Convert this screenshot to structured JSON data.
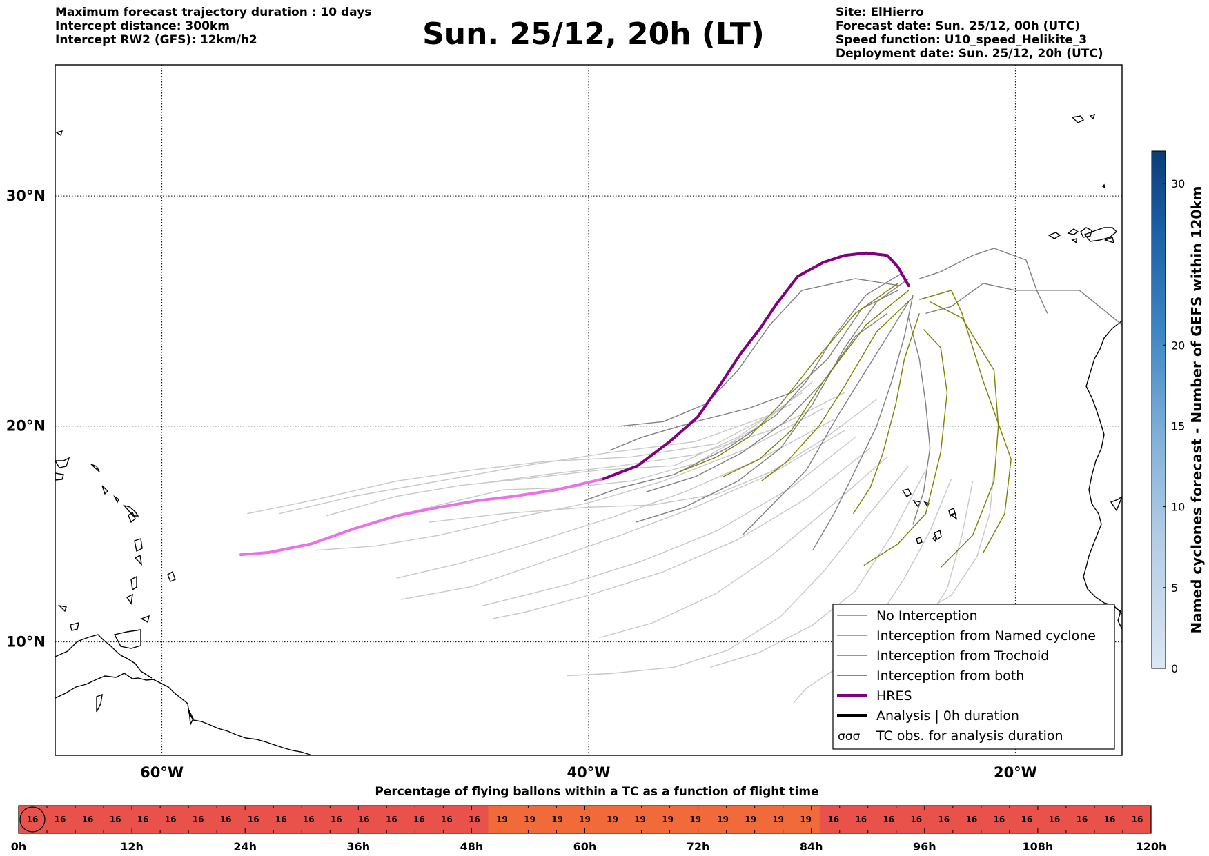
{
  "header_left": [
    "Maximum forecast trajectory duration : 10 days",
    "Intercept distance: 300km",
    "Intercept RW2 (GFS):  12km/h2"
  ],
  "title": "Sun. 25/12, 20h (LT)",
  "header_right": [
    "Site: ElHierro",
    "Forecast date: Sun. 25/12, 00h (UTC)",
    "Speed function: U10_speed_Helikite_3",
    "Deployment date: Sun. 25/12, 20h (UTC)"
  ],
  "map": {
    "lat_labels": [
      {
        "text": "30°N",
        "lat": 30
      },
      {
        "text": "20°N",
        "lat": 20
      },
      {
        "text": "10°N",
        "lat": 10
      }
    ],
    "lon_labels": [
      {
        "text": "60°W",
        "lon": -60
      },
      {
        "text": "40°W",
        "lon": -40
      },
      {
        "text": "20°W",
        "lon": -20
      }
    ],
    "lon_range": [
      -65,
      -15
    ],
    "lat_range": [
      4.6,
      35.3
    ],
    "grid": true
  },
  "legend": [
    {
      "label": "No Interception",
      "color": "#808080",
      "kind": "thin"
    },
    {
      "label": "Interception from Named cyclone",
      "color": "#ff5a1f",
      "kind": "thin"
    },
    {
      "label": "Interception from Trochoid",
      "color": "#808000",
      "kind": "thin"
    },
    {
      "label": "Interception from both",
      "color": "#228b22",
      "kind": "thin"
    },
    {
      "label": "HRES",
      "color": "#800080",
      "kind": "thick"
    },
    {
      "label": "Analysis | 0h duration",
      "color": "#000000",
      "kind": "thick"
    },
    {
      "label": "TC obs. for analysis duration",
      "color": "#000000",
      "kind": "symbol"
    }
  ],
  "colorbar": {
    "label": "Named cyclones forecast - Number of GEFS within 120km",
    "ticks": [
      "0",
      "5",
      "10",
      "15",
      "20",
      "30"
    ],
    "tick_values": [
      0,
      5,
      10,
      15,
      20,
      30
    ],
    "range": [
      0,
      32
    ],
    "color_low": "#dbe7f4",
    "color_high": "#0b3c78"
  },
  "bar": {
    "title": "Percentage of flying ballons within a TC as a function of flight time",
    "cells": [
      16,
      16,
      16,
      16,
      16,
      16,
      16,
      16,
      16,
      16,
      16,
      16,
      16,
      16,
      16,
      16,
      16,
      19,
      19,
      19,
      19,
      19,
      19,
      19,
      19,
      19,
      19,
      19,
      19,
      16,
      16,
      16,
      16,
      16,
      16,
      16,
      16,
      16,
      16,
      16,
      16
    ],
    "color_16": "#e8524a",
    "color_19": "#f06a3a",
    "time_labels": [
      "0h",
      "12h",
      "24h",
      "36h",
      "48h",
      "60h",
      "72h",
      "84h",
      "96h",
      "108h",
      "120h"
    ],
    "time_values": [
      0,
      12,
      24,
      36,
      48,
      60,
      72,
      84,
      96,
      108,
      120
    ],
    "highlight_cell": 0
  },
  "trajectories": {
    "hres": [
      [
        -25.0,
        26.2
      ],
      [
        -25.5,
        27.0
      ],
      [
        -26.0,
        27.5
      ],
      [
        -27.0,
        27.6
      ],
      [
        -28.0,
        27.5
      ],
      [
        -29.0,
        27.2
      ],
      [
        -30.2,
        26.6
      ],
      [
        -31.2,
        25.4
      ],
      [
        -32.0,
        24.3
      ],
      [
        -32.9,
        23.2
      ],
      [
        -33.8,
        21.9
      ],
      [
        -34.9,
        20.4
      ],
      [
        -36.2,
        19.3
      ],
      [
        -37.7,
        18.2
      ],
      [
        -39.3,
        17.6
      ]
    ],
    "hres_late": [
      [
        -39.3,
        17.6
      ],
      [
        -41.5,
        17.1
      ],
      [
        -43.5,
        16.8
      ],
      [
        -45.2,
        16.6
      ],
      [
        -47.0,
        16.3
      ],
      [
        -49.0,
        15.9
      ],
      [
        -51.0,
        15.3
      ],
      [
        -53.0,
        14.6
      ],
      [
        -55.0,
        14.2
      ],
      [
        -56.3,
        14.1
      ]
    ],
    "no_interception": [
      [
        [
          -25.0,
          26.5
        ],
        [
          -26.5,
          25.5
        ],
        [
          -28.0,
          23.5
        ],
        [
          -29.5,
          21.0
        ],
        [
          -31.0,
          19.0
        ],
        [
          -33.0,
          17.5
        ],
        [
          -35.5,
          16.3
        ],
        [
          -37.8,
          15.6
        ]
      ],
      [
        [
          -25.2,
          26.8
        ],
        [
          -27.0,
          25.8
        ],
        [
          -28.5,
          24.0
        ],
        [
          -29.8,
          22.0
        ],
        [
          -31.2,
          20.5
        ],
        [
          -33.5,
          19.0
        ],
        [
          -36.0,
          17.8
        ],
        [
          -38.5,
          17.2
        ],
        [
          -40.2,
          16.6
        ]
      ],
      [
        [
          -25.5,
          26.0
        ],
        [
          -27.2,
          25.2
        ],
        [
          -28.8,
          23.0
        ],
        [
          -30.5,
          21.5
        ],
        [
          -32.5,
          20.8
        ],
        [
          -35.0,
          20.2
        ],
        [
          -37.5,
          19.5
        ],
        [
          -39.0,
          18.9
        ]
      ],
      [
        [
          -25.0,
          25.5
        ],
        [
          -26.0,
          24.0
        ],
        [
          -27.0,
          22.5
        ],
        [
          -28.3,
          20.5
        ],
        [
          -29.8,
          18.0
        ],
        [
          -31.5,
          16.3
        ],
        [
          -32.8,
          15.0
        ]
      ],
      [
        [
          -25.4,
          26.2
        ],
        [
          -27.5,
          26.5
        ],
        [
          -30.0,
          26.0
        ],
        [
          -31.5,
          24.5
        ],
        [
          -33.0,
          22.5
        ],
        [
          -34.5,
          21.0
        ],
        [
          -36.5,
          20.2
        ],
        [
          -38.5,
          20.0
        ]
      ],
      [
        [
          -24.8,
          25.8
        ],
        [
          -25.2,
          24.0
        ],
        [
          -25.8,
          22.0
        ],
        [
          -26.5,
          20.0
        ],
        [
          -27.5,
          18.0
        ],
        [
          -28.5,
          16.0
        ],
        [
          -29.5,
          14.3
        ]
      ],
      [
        [
          -25.0,
          24.8
        ],
        [
          -24.5,
          23.0
        ],
        [
          -24.2,
          21.0
        ],
        [
          -24.0,
          19.0
        ],
        [
          -24.3,
          17.0
        ],
        [
          -24.8,
          15.5
        ]
      ],
      [
        [
          -24.5,
          26.5
        ],
        [
          -23.5,
          26.8
        ],
        [
          -22.0,
          27.5
        ],
        [
          -21.0,
          27.8
        ],
        [
          -19.5,
          27.3
        ],
        [
          -19.0,
          26.0
        ],
        [
          -18.5,
          25.0
        ]
      ],
      [
        [
          -26.0,
          25.0
        ],
        [
          -27.5,
          24.0
        ],
        [
          -29.0,
          22.0
        ],
        [
          -30.8,
          20.2
        ],
        [
          -32.8,
          18.8
        ],
        [
          -35.0,
          17.7
        ],
        [
          -37.3,
          17.0
        ]
      ],
      [
        [
          -24.2,
          25.0
        ],
        [
          -23.0,
          25.3
        ],
        [
          -21.5,
          26.3
        ],
        [
          -20.0,
          26.0
        ],
        [
          -17.0,
          26.0
        ],
        [
          -15.0,
          24.5
        ]
      ]
    ],
    "trochoid": [
      [
        [
          -25.5,
          26.3
        ],
        [
          -27.5,
          25.0
        ],
        [
          -29.5,
          22.8
        ],
        [
          -31.0,
          21.0
        ],
        [
          -32.5,
          19.5
        ],
        [
          -34.0,
          18.6
        ],
        [
          -35.8,
          17.9
        ]
      ],
      [
        [
          -25.0,
          26.0
        ],
        [
          -27.0,
          24.5
        ],
        [
          -29.0,
          22.0
        ],
        [
          -30.5,
          19.8
        ],
        [
          -32.0,
          18.5
        ],
        [
          -33.7,
          17.7
        ]
      ],
      [
        [
          -24.8,
          25.7
        ],
        [
          -26.5,
          24.2
        ],
        [
          -28.0,
          21.8
        ],
        [
          -29.2,
          20.0
        ],
        [
          -30.7,
          18.4
        ],
        [
          -31.9,
          17.5
        ]
      ],
      [
        [
          -24.5,
          25.0
        ],
        [
          -25.2,
          23.0
        ],
        [
          -25.6,
          21.0
        ],
        [
          -26.2,
          18.8
        ],
        [
          -26.8,
          17.2
        ],
        [
          -27.6,
          16.0
        ]
      ],
      [
        [
          -24.3,
          24.3
        ],
        [
          -23.5,
          23.5
        ],
        [
          -23.2,
          21.5
        ],
        [
          -23.5,
          18.8
        ],
        [
          -24.2,
          16.0
        ],
        [
          -25.5,
          14.6
        ],
        [
          -27.1,
          13.6
        ]
      ],
      [
        [
          -24.0,
          25.5
        ],
        [
          -22.5,
          24.8
        ],
        [
          -21.0,
          22.5
        ],
        [
          -20.8,
          20.0
        ],
        [
          -21.0,
          17.5
        ],
        [
          -22.0,
          15.0
        ],
        [
          -23.5,
          13.5
        ]
      ],
      [
        [
          -24.5,
          25.6
        ],
        [
          -23.0,
          26.0
        ],
        [
          -22.5,
          25.0
        ],
        [
          -21.5,
          22.0
        ],
        [
          -20.2,
          18.5
        ],
        [
          -20.5,
          16.0
        ],
        [
          -21.5,
          14.2
        ]
      ]
    ],
    "light": [
      [
        [
          -29.5,
          22.0
        ],
        [
          -32.0,
          20.0
        ],
        [
          -35.0,
          18.3
        ],
        [
          -38.0,
          17.5
        ],
        [
          -41.0,
          17.2
        ],
        [
          -44.0,
          17.1
        ],
        [
          -47.0,
          16.4
        ],
        [
          -49.5,
          15.8
        ]
      ],
      [
        [
          -30.0,
          21.5
        ],
        [
          -33.0,
          19.5
        ],
        [
          -36.0,
          18.2
        ],
        [
          -39.5,
          18.0
        ],
        [
          -43.0,
          17.6
        ],
        [
          -46.0,
          17.3
        ],
        [
          -49.0,
          16.8
        ],
        [
          -52.3,
          15.9
        ]
      ],
      [
        [
          -30.5,
          21.0
        ],
        [
          -34.0,
          19.2
        ],
        [
          -38.0,
          18.6
        ],
        [
          -42.0,
          18.4
        ],
        [
          -45.5,
          18.0
        ],
        [
          -49.0,
          17.5
        ],
        [
          -53.0,
          16.6
        ],
        [
          -56.0,
          16.0
        ]
      ],
      [
        [
          -31.5,
          20.5
        ],
        [
          -35.0,
          19.3
        ],
        [
          -39.0,
          18.8
        ],
        [
          -43.0,
          18.2
        ],
        [
          -47.0,
          17.5
        ],
        [
          -51.0,
          16.8
        ],
        [
          -54.5,
          16.0
        ]
      ],
      [
        [
          -29.0,
          20.8
        ],
        [
          -32.5,
          19.0
        ],
        [
          -36.5,
          17.5
        ],
        [
          -40.0,
          16.5
        ],
        [
          -43.5,
          15.8
        ],
        [
          -47.0,
          15.0
        ],
        [
          -50.0,
          14.5
        ],
        [
          -52.8,
          14.3
        ]
      ],
      [
        [
          -28.5,
          20.3
        ],
        [
          -32.0,
          18.5
        ],
        [
          -35.5,
          17.0
        ],
        [
          -39.0,
          15.8
        ],
        [
          -42.5,
          14.7
        ],
        [
          -46.0,
          13.7
        ],
        [
          -49.0,
          13.0
        ]
      ],
      [
        [
          -28.0,
          19.8
        ],
        [
          -31.5,
          17.8
        ],
        [
          -35.0,
          16.3
        ],
        [
          -38.5,
          15.0
        ],
        [
          -42.0,
          13.8
        ],
        [
          -45.5,
          12.6
        ],
        [
          -48.8,
          12.0
        ]
      ],
      [
        [
          -27.5,
          19.5
        ],
        [
          -30.5,
          17.2
        ],
        [
          -34.0,
          15.2
        ],
        [
          -37.5,
          13.8
        ],
        [
          -41.0,
          12.7
        ],
        [
          -45.0,
          11.7
        ]
      ],
      [
        [
          -26.8,
          19.0
        ],
        [
          -29.8,
          16.7
        ],
        [
          -33.0,
          14.8
        ],
        [
          -36.5,
          13.3
        ],
        [
          -40.0,
          12.2
        ],
        [
          -43.0,
          11.4
        ],
        [
          -44.5,
          11.1
        ]
      ],
      [
        [
          -26.0,
          18.6
        ],
        [
          -28.7,
          16.3
        ],
        [
          -31.5,
          14.0
        ],
        [
          -34.0,
          12.3
        ],
        [
          -37.0,
          10.9
        ],
        [
          -39.5,
          10.2
        ]
      ],
      [
        [
          -25.0,
          18.2
        ],
        [
          -27.0,
          15.8
        ],
        [
          -29.0,
          13.3
        ],
        [
          -31.0,
          11.2
        ],
        [
          -33.5,
          9.6
        ],
        [
          -36.0,
          8.8
        ],
        [
          -39.0,
          8.5
        ],
        [
          -41.0,
          8.4
        ]
      ],
      [
        [
          -24.2,
          18.0
        ],
        [
          -25.8,
          15.0
        ],
        [
          -27.5,
          12.4
        ],
        [
          -29.5,
          10.8
        ],
        [
          -32.0,
          9.5
        ],
        [
          -34.3,
          8.8
        ]
      ],
      [
        [
          -23.0,
          17.6
        ],
        [
          -24.0,
          15.2
        ],
        [
          -25.2,
          13.0
        ],
        [
          -26.5,
          11.0
        ],
        [
          -28.0,
          9.0
        ],
        [
          -29.8,
          7.8
        ],
        [
          -30.4,
          7.1
        ]
      ],
      [
        [
          -22.0,
          17.5
        ],
        [
          -22.5,
          15.0
        ],
        [
          -23.2,
          12.5
        ],
        [
          -24.5,
          10.5
        ],
        [
          -26.0,
          9.5
        ],
        [
          -27.5,
          9.0
        ]
      ],
      [
        [
          -21.0,
          18.0
        ],
        [
          -21.2,
          16.0
        ],
        [
          -21.8,
          14.0
        ],
        [
          -23.0,
          12.2
        ],
        [
          -24.5,
          11.3
        ]
      ],
      [
        [
          -28.0,
          21.5
        ],
        [
          -31.5,
          19.8
        ],
        [
          -35.0,
          18.7
        ],
        [
          -38.5,
          18.2
        ],
        [
          -42.0,
          17.8
        ],
        [
          -45.0,
          17.4
        ]
      ],
      [
        [
          -26.5,
          21.2
        ],
        [
          -29.0,
          19.4
        ],
        [
          -31.5,
          17.9
        ],
        [
          -34.0,
          16.9
        ],
        [
          -37.0,
          16.4
        ],
        [
          -40.0,
          16.3
        ],
        [
          -44.0,
          16.0
        ],
        [
          -47.5,
          15.6
        ]
      ]
    ]
  }
}
